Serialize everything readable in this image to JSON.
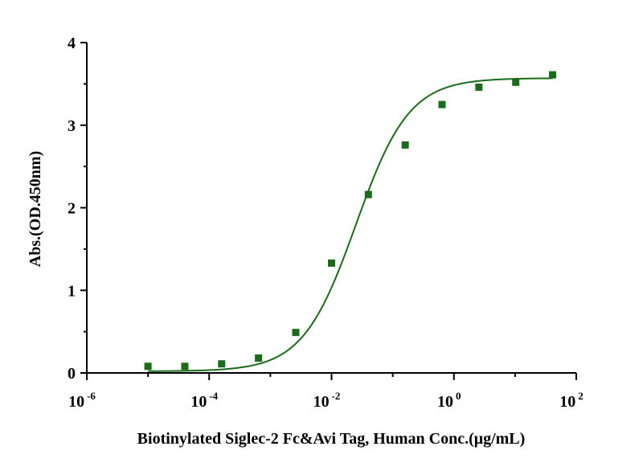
{
  "chart_data": {
    "type": "scatter",
    "xlabel": "Biotinylated Siglec-2 Fc&Avi Tag, Human Conc.(μg/mL)",
    "ylabel": "Abs.(OD.450nm)",
    "x_scale": "log",
    "xlim": [
      1e-06,
      100
    ],
    "ylim": [
      0,
      4
    ],
    "x_ticks": [
      {
        "value": 1e-06,
        "base": "10",
        "exp": "-6"
      },
      {
        "value": 0.0001,
        "base": "10",
        "exp": "-4"
      },
      {
        "value": 0.01,
        "base": "10",
        "exp": "-2"
      },
      {
        "value": 1,
        "base": "10",
        "exp": "0"
      },
      {
        "value": 100,
        "base": "10",
        "exp": "2"
      }
    ],
    "y_ticks": [
      "0",
      "1",
      "2",
      "3",
      "4"
    ],
    "grid": false,
    "color": "#1a6b1a",
    "series": [
      {
        "x": [
          1e-05,
          4e-05,
          0.00016,
          0.00064,
          0.0026,
          0.01,
          0.04,
          0.16,
          0.64,
          2.56,
          10.24,
          40.96
        ],
        "y": [
          0.08,
          0.08,
          0.11,
          0.18,
          0.49,
          1.33,
          2.16,
          2.76,
          3.25,
          3.46,
          3.52,
          3.61
        ],
        "fit": {
          "model": "4PL",
          "bottom": 0.02,
          "top": 3.57,
          "ec50": 0.025,
          "hill": 1.0
        }
      }
    ]
  }
}
